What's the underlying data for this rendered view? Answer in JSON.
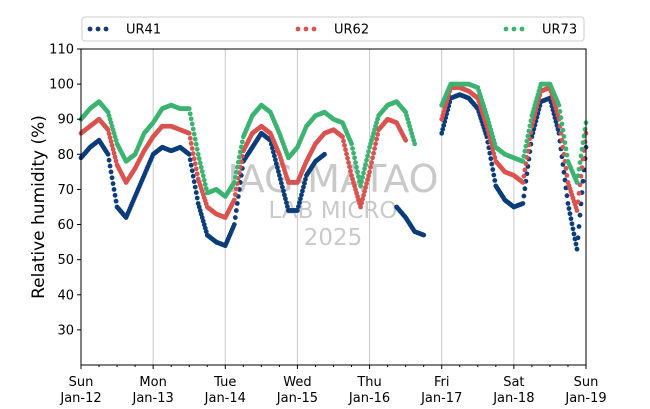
{
  "chart_data": {
    "type": "scatter",
    "ylabel": "Relative humidity (%)",
    "ylim": [
      20,
      110
    ],
    "yticks": [
      30,
      40,
      50,
      60,
      70,
      80,
      90,
      100,
      110
    ],
    "xlim_days": [
      0,
      7
    ],
    "xticks": [
      {
        "day": "Sun",
        "date": "Jan-12"
      },
      {
        "day": "Mon",
        "date": "Jan-13"
      },
      {
        "day": "Tue",
        "date": "Jan-14"
      },
      {
        "day": "Wed",
        "date": "Jan-15"
      },
      {
        "day": "Thu",
        "date": "Jan-16"
      },
      {
        "day": "Fri",
        "date": "Jan-17"
      },
      {
        "day": "Sat",
        "date": "Jan-18"
      },
      {
        "day": "Sun",
        "date": "Jan-19"
      }
    ],
    "grid": "vertical",
    "legend_position": "top",
    "watermark": [
      "IAG-MATAO",
      "LAB MICRO",
      "2025"
    ],
    "series": [
      {
        "name": "UR41",
        "color": "#0b3d7a",
        "points": [
          [
            0.0,
            79
          ],
          [
            0.125,
            82
          ],
          [
            0.25,
            84
          ],
          [
            0.375,
            80
          ],
          [
            0.5,
            65
          ],
          [
            0.625,
            62
          ],
          [
            0.75,
            68
          ],
          [
            0.875,
            74
          ],
          [
            1.0,
            80
          ],
          [
            1.125,
            82
          ],
          [
            1.25,
            81
          ],
          [
            1.375,
            82
          ],
          [
            1.5,
            80
          ],
          [
            1.625,
            66
          ],
          [
            1.75,
            57
          ],
          [
            1.875,
            55
          ],
          [
            2.0,
            54
          ],
          [
            2.125,
            60
          ],
          [
            2.25,
            78
          ],
          [
            2.375,
            82
          ],
          [
            2.5,
            86
          ],
          [
            2.625,
            84
          ],
          [
            2.75,
            74
          ],
          [
            2.875,
            64
          ],
          [
            3.0,
            64
          ],
          [
            3.125,
            74
          ],
          [
            3.25,
            78
          ],
          [
            3.375,
            80
          ],
          [
            4.375,
            65
          ],
          [
            4.5,
            62
          ],
          [
            4.625,
            58
          ],
          [
            4.75,
            57
          ],
          [
            5.0,
            86
          ],
          [
            5.125,
            96
          ],
          [
            5.25,
            97
          ],
          [
            5.375,
            96
          ],
          [
            5.5,
            93
          ],
          [
            5.625,
            85
          ],
          [
            5.75,
            71
          ],
          [
            5.875,
            67
          ],
          [
            6.0,
            65
          ],
          [
            6.125,
            66
          ],
          [
            6.25,
            85
          ],
          [
            6.375,
            95
          ],
          [
            6.5,
            96
          ],
          [
            6.625,
            86
          ],
          [
            6.75,
            66
          ],
          [
            6.875,
            53
          ],
          [
            7.0,
            82
          ]
        ]
      },
      {
        "name": "UR62",
        "color": "#d9534f",
        "points": [
          [
            0.0,
            86
          ],
          [
            0.125,
            88
          ],
          [
            0.25,
            90
          ],
          [
            0.375,
            87
          ],
          [
            0.5,
            77
          ],
          [
            0.625,
            72
          ],
          [
            0.75,
            76
          ],
          [
            0.875,
            81
          ],
          [
            1.0,
            85
          ],
          [
            1.125,
            88
          ],
          [
            1.25,
            88
          ],
          [
            1.375,
            87
          ],
          [
            1.5,
            86
          ],
          [
            1.625,
            73
          ],
          [
            1.75,
            65
          ],
          [
            1.875,
            63
          ],
          [
            2.0,
            62
          ],
          [
            2.125,
            67
          ],
          [
            2.25,
            81
          ],
          [
            2.375,
            86
          ],
          [
            2.5,
            88
          ],
          [
            2.625,
            86
          ],
          [
            2.75,
            80
          ],
          [
            2.875,
            72
          ],
          [
            3.0,
            72
          ],
          [
            3.125,
            78
          ],
          [
            3.25,
            83
          ],
          [
            3.375,
            86
          ],
          [
            3.5,
            87
          ],
          [
            3.625,
            85
          ],
          [
            3.75,
            74
          ],
          [
            3.875,
            65
          ],
          [
            4.0,
            75
          ],
          [
            4.125,
            87
          ],
          [
            4.25,
            90
          ],
          [
            4.375,
            89
          ],
          [
            4.5,
            84
          ],
          [
            5.0,
            90
          ],
          [
            5.125,
            99
          ],
          [
            5.25,
            99
          ],
          [
            5.375,
            98
          ],
          [
            5.5,
            96
          ],
          [
            5.625,
            88
          ],
          [
            5.75,
            78
          ],
          [
            5.875,
            75
          ],
          [
            6.0,
            74
          ],
          [
            6.125,
            72
          ],
          [
            6.25,
            88
          ],
          [
            6.375,
            98
          ],
          [
            6.5,
            99
          ],
          [
            6.625,
            90
          ],
          [
            6.75,
            72
          ],
          [
            6.875,
            64
          ],
          [
            7.0,
            86
          ]
        ]
      },
      {
        "name": "UR73",
        "color": "#3cb371",
        "points": [
          [
            0.0,
            90
          ],
          [
            0.125,
            93
          ],
          [
            0.25,
            95
          ],
          [
            0.375,
            92
          ],
          [
            0.5,
            83
          ],
          [
            0.625,
            78
          ],
          [
            0.75,
            80
          ],
          [
            0.875,
            86
          ],
          [
            1.0,
            89
          ],
          [
            1.125,
            93
          ],
          [
            1.25,
            94
          ],
          [
            1.375,
            93
          ],
          [
            1.5,
            93
          ],
          [
            1.625,
            80
          ],
          [
            1.75,
            69
          ],
          [
            1.875,
            70
          ],
          [
            2.0,
            68
          ],
          [
            2.125,
            72
          ],
          [
            2.25,
            85
          ],
          [
            2.375,
            91
          ],
          [
            2.5,
            94
          ],
          [
            2.625,
            92
          ],
          [
            2.75,
            86
          ],
          [
            2.875,
            79
          ],
          [
            3.0,
            82
          ],
          [
            3.125,
            88
          ],
          [
            3.25,
            91
          ],
          [
            3.375,
            92
          ],
          [
            3.5,
            90
          ],
          [
            3.625,
            89
          ],
          [
            3.75,
            83
          ],
          [
            3.875,
            71
          ],
          [
            4.0,
            82
          ],
          [
            4.125,
            91
          ],
          [
            4.25,
            94
          ],
          [
            4.375,
            95
          ],
          [
            4.5,
            92
          ],
          [
            4.625,
            83
          ],
          [
            5.0,
            94
          ],
          [
            5.125,
            100
          ],
          [
            5.25,
            100
          ],
          [
            5.375,
            100
          ],
          [
            5.5,
            99
          ],
          [
            5.625,
            91
          ],
          [
            5.75,
            82
          ],
          [
            5.875,
            80
          ],
          [
            6.0,
            79
          ],
          [
            6.125,
            78
          ],
          [
            6.25,
            91
          ],
          [
            6.375,
            100
          ],
          [
            6.5,
            100
          ],
          [
            6.625,
            94
          ],
          [
            6.75,
            78
          ],
          [
            6.875,
            72
          ],
          [
            7.0,
            89
          ]
        ]
      }
    ]
  }
}
